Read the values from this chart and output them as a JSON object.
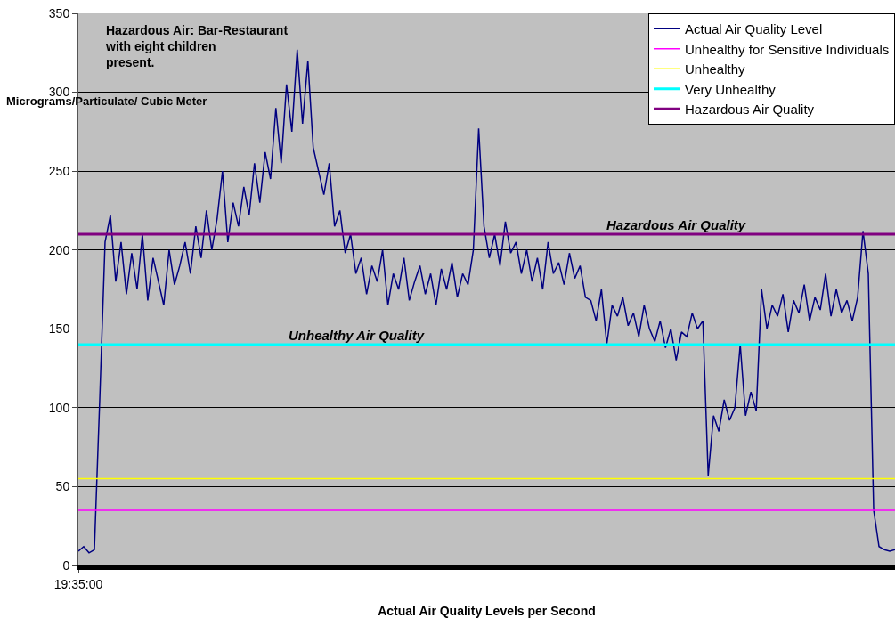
{
  "chart_data": {
    "type": "line",
    "title": "Hazardous Air: Bar-Restaurant with eight children present.",
    "xlabel": "Actual Air Quality Levels per Second",
    "ylabel": "Micrograms/Particulate/ Cubic Meter",
    "categories": [
      "19:35:00",
      null,
      null,
      null,
      null,
      null,
      null,
      null,
      null,
      null,
      null,
      null,
      null,
      null,
      null,
      null,
      null,
      null,
      null,
      null,
      null,
      null,
      null,
      null,
      null,
      null,
      null,
      null,
      null,
      null,
      null,
      null,
      null,
      null,
      null,
      null,
      null,
      null,
      null,
      null,
      null,
      null,
      null,
      null,
      null,
      null,
      null,
      null,
      null,
      null,
      null,
      null,
      null,
      null,
      null,
      null,
      null,
      null,
      null,
      null,
      null,
      null,
      null,
      null,
      null,
      null,
      null,
      null,
      null,
      null,
      null,
      null,
      null,
      null,
      null,
      null,
      null,
      null,
      null,
      null,
      null,
      null,
      null,
      null,
      null,
      null,
      null,
      null,
      null,
      null,
      null,
      null,
      null,
      null,
      null,
      null,
      null,
      null,
      null,
      null,
      null,
      null,
      null,
      null,
      null,
      null,
      null,
      null,
      null,
      null,
      null,
      null,
      null,
      null,
      null,
      null,
      null,
      null,
      null,
      null,
      null,
      null,
      null,
      null,
      null,
      null,
      null,
      null,
      null,
      null,
      null,
      null,
      null,
      null,
      null,
      null,
      null,
      null,
      null,
      null,
      null,
      null,
      null,
      null,
      null,
      null,
      null,
      null,
      null,
      null,
      null,
      null,
      null,
      null
    ],
    "series": [
      {
        "name": "Actual Air Quality Level",
        "color": "#000080",
        "values": [
          9,
          12,
          8,
          10,
          105,
          205,
          222,
          180,
          205,
          172,
          198,
          175,
          210,
          168,
          195,
          180,
          165,
          200,
          178,
          190,
          205,
          185,
          215,
          195,
          225,
          200,
          220,
          250,
          205,
          230,
          215,
          240,
          222,
          255,
          230,
          262,
          245,
          290,
          255,
          305,
          275,
          327,
          280,
          320,
          265,
          250,
          235,
          255,
          215,
          225,
          198,
          210,
          185,
          195,
          172,
          190,
          180,
          200,
          165,
          185,
          175,
          195,
          168,
          180,
          190,
          172,
          185,
          165,
          188,
          175,
          192,
          170,
          185,
          178,
          200,
          277,
          215,
          195,
          210,
          190,
          218,
          198,
          205,
          185,
          200,
          180,
          195,
          175,
          205,
          185,
          192,
          178,
          198,
          182,
          190,
          170,
          168,
          155,
          175,
          140,
          165,
          158,
          170,
          152,
          160,
          145,
          165,
          150,
          142,
          155,
          138,
          150,
          130,
          148,
          145,
          160,
          150,
          155,
          57,
          95,
          85,
          105,
          92,
          100,
          140,
          95,
          110,
          98,
          175,
          150,
          165,
          158,
          172,
          148,
          168,
          160,
          178,
          155,
          170,
          162,
          185,
          158,
          175,
          160,
          168,
          155,
          170,
          212,
          185,
          35,
          12,
          10,
          9,
          10
        ]
      }
    ],
    "ref_lines": [
      {
        "axis": "y",
        "value": 35,
        "label": "Unhealthy for Sensitive Individuals",
        "color": "#ff00ff"
      },
      {
        "axis": "y",
        "value": 55,
        "label": "Unhealthy",
        "color": "#ffff00"
      },
      {
        "axis": "y",
        "value": 140,
        "label": "Very Unhealthy",
        "color": "#00ffff"
      },
      {
        "axis": "y",
        "value": 210,
        "label": "Hazardous Air Quality",
        "color": "#800080"
      }
    ],
    "annotations": [
      {
        "text": "Hazardous Air Quality",
        "y": 210
      },
      {
        "text": "Unhealthy Air Quality",
        "y": 140
      }
    ],
    "ylim": [
      0,
      350
    ],
    "yticks": [
      0,
      50,
      100,
      150,
      200,
      250,
      300,
      350
    ],
    "grid": "y",
    "legend": "top right",
    "marker": "none",
    "line_style": "solid"
  }
}
